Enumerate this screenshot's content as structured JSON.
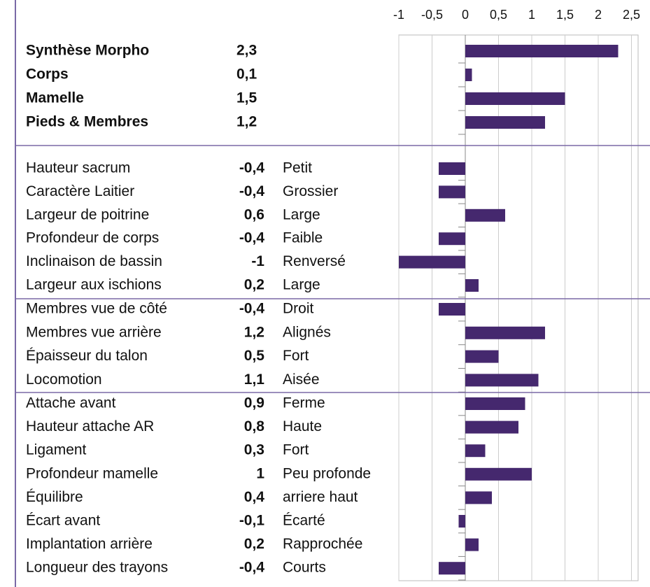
{
  "chart_data": {
    "type": "bar",
    "color": "#45286e",
    "xlim": [
      -1,
      2.5
    ],
    "xticks": [
      -1,
      {
        "value": -0.5,
        "label": "-0,5"
      },
      0,
      {
        "value": 0.5,
        "label": "0,5"
      },
      1,
      {
        "value": 1.5,
        "label": "1,5"
      },
      2,
      {
        "value": 2.5,
        "label": "2,5"
      }
    ],
    "groups": [
      {
        "categories": [
          "Synthèse Morpho",
          "Corps",
          "Mamelle",
          "Pieds & Membres"
        ],
        "values": [
          2.3,
          0.1,
          1.5,
          1.2
        ],
        "value_labels": [
          "2,3",
          "0,1",
          "1,5",
          "1,2"
        ]
      },
      {
        "categories": [
          "Hauteur sacrum",
          "Caractère Laitier",
          "Largeur de poitrine",
          "Profondeur de corps",
          "Inclinaison de bassin",
          "Largeur aux ischions"
        ],
        "values": [
          -0.4,
          -0.4,
          0.6,
          -0.4,
          -1,
          0.2
        ],
        "value_labels": [
          "-0,4",
          "-0,4",
          "0,6",
          "-0,4",
          "-1",
          "0,2"
        ],
        "descriptors": [
          "Petit",
          "Grossier",
          "Large",
          "Faible",
          "Renversé",
          "Large"
        ]
      },
      {
        "categories": [
          "Membres vue de côté",
          "Membres vue arrière",
          "Épaisseur du talon",
          "Locomotion"
        ],
        "values": [
          -0.4,
          1.2,
          0.5,
          1.1
        ],
        "value_labels": [
          "-0,4",
          "1,2",
          "0,5",
          "1,1"
        ],
        "descriptors": [
          "Droit",
          "Alignés",
          "Fort",
          "Aisée"
        ]
      },
      {
        "categories": [
          "Attache avant",
          "Hauteur attache AR",
          "Ligament",
          "Profondeur mamelle",
          "Équilibre",
          "Écart avant",
          "Implantation arrière",
          "Longueur des trayons"
        ],
        "values": [
          0.9,
          0.8,
          0.3,
          1,
          0.4,
          -0.1,
          0.2,
          -0.4
        ],
        "value_labels": [
          "0,9",
          "0,8",
          "0,3",
          "1",
          "0,4",
          "-0,1",
          "0,2",
          "-0,4"
        ],
        "descriptors": [
          "Ferme",
          "Haute",
          "Fort",
          "Peu profonde",
          "arriere haut",
          "Écarté",
          "Rapprochée",
          "Courts"
        ]
      }
    ]
  }
}
